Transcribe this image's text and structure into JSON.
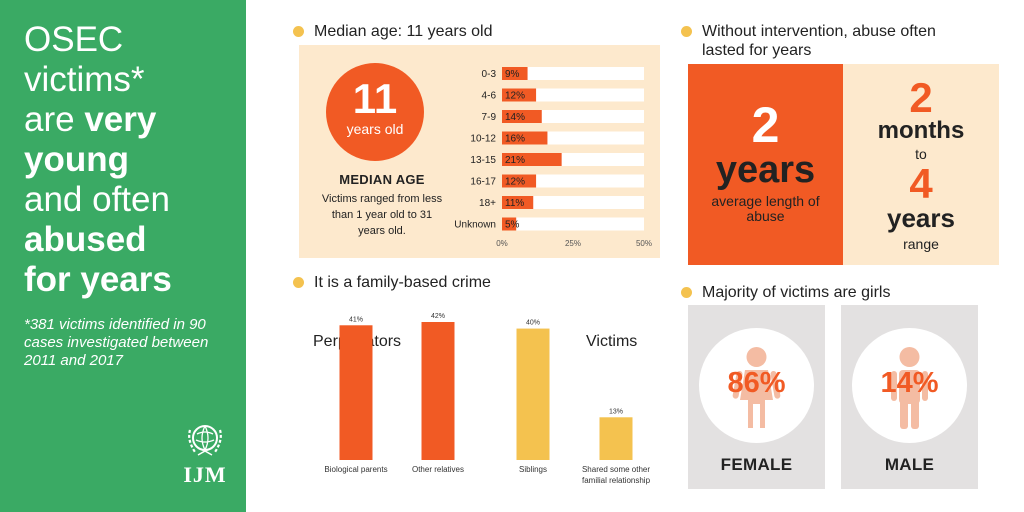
{
  "headline": {
    "l1": "OSEC",
    "l2": "victims*",
    "l3a": "are ",
    "l3b": "very",
    "l4": "young",
    "l5": "and often",
    "l6": "abused",
    "l7": "for years"
  },
  "footnote": "*381 victims identified in 90 cases investigated between 2011 and 2017",
  "logo_text": "IJM",
  "median": {
    "header": "Median age: 11 years old",
    "circle_number": "11",
    "circle_unit": "years old",
    "title": "MEDIAN AGE",
    "description": "Victims ranged from less than 1 year old to 31 years old."
  },
  "duration": {
    "header": "Without intervention, abuse often lasted for years",
    "avg_number": "2",
    "avg_unit": "years",
    "avg_note": "average length of abuse",
    "range_from": "2",
    "range_from_unit": "months",
    "range_to_word": "to",
    "range_to": "4",
    "range_to_unit": "years",
    "range_label": "range"
  },
  "family": {
    "header": "It is a family-based crime",
    "perpetrators_label": "Perpetrators",
    "victims_label": "Victims"
  },
  "gender": {
    "header": "Majority of victims are girls",
    "female_pct": "86%",
    "female_label": "FEMALE",
    "male_pct": "14%",
    "male_label": "MALE"
  },
  "colors": {
    "green": "#3aaa64",
    "orange": "#f15a24",
    "yellow": "#f4c24f",
    "cream": "#fde9cd",
    "gray": "#e3e1e1",
    "figure": "#f4bca3"
  },
  "chart_data": [
    {
      "type": "bar",
      "orientation": "horizontal",
      "categories": [
        "0-3",
        "4-6",
        "7-9",
        "10-12",
        "13-15",
        "16-17",
        "18+",
        "Unknown"
      ],
      "values": [
        9,
        12,
        14,
        16,
        21,
        12,
        11,
        5
      ],
      "value_labels": [
        "9%",
        "12%",
        "14%",
        "16%",
        "21%",
        "12%",
        "11%",
        "5%"
      ],
      "xlim": [
        0,
        50
      ],
      "x_ticks": [
        "0%",
        "25%",
        "50%"
      ],
      "grid": false
    },
    {
      "type": "bar",
      "categories": [
        "Biological parents",
        "Other relatives",
        "Siblings",
        "Shared some other familial relationship"
      ],
      "values": [
        41,
        42,
        40,
        13
      ],
      "value_labels": [
        "41%",
        "42%",
        "40%",
        "13%"
      ],
      "groups": [
        "Perpetrators",
        "Perpetrators",
        "Victims",
        "Victims"
      ],
      "ylim": [
        0,
        42
      ],
      "grid": false
    }
  ]
}
